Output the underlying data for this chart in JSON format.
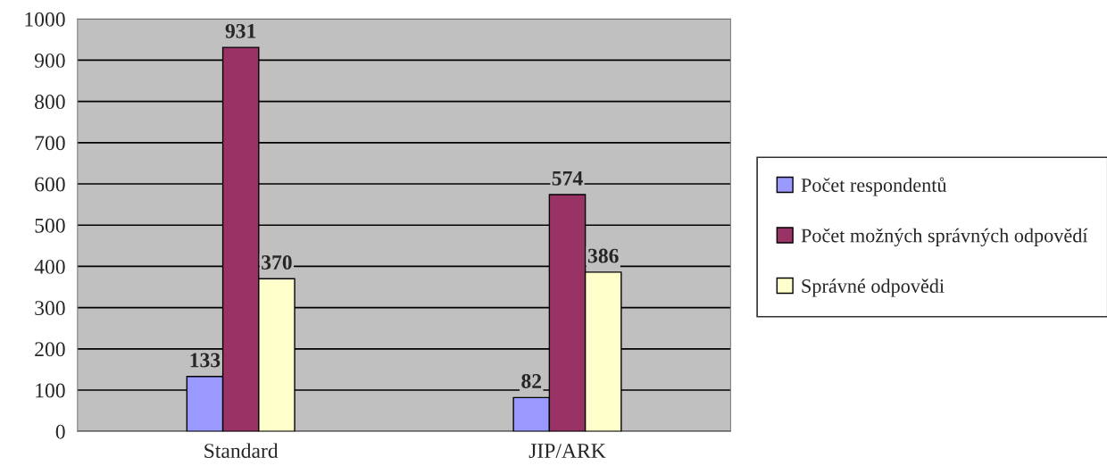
{
  "chart_data": {
    "type": "bar",
    "categories": [
      "Standard",
      "JIP/ARK"
    ],
    "series": [
      {
        "name": "Počet respondentů",
        "color": "#9999ff",
        "values": [
          133,
          82
        ]
      },
      {
        "name": "Počet možných správných odpovědí",
        "color": "#993366",
        "values": [
          931,
          574
        ]
      },
      {
        "name": "Správné odpovědi",
        "color": "#ffffcc",
        "values": [
          370,
          386
        ]
      }
    ],
    "ylim": [
      0,
      1000
    ],
    "yticks": [
      0,
      100,
      200,
      300,
      400,
      500,
      600,
      700,
      800,
      900,
      1000
    ],
    "grid": "y",
    "legend": "right",
    "data_labels": true
  }
}
